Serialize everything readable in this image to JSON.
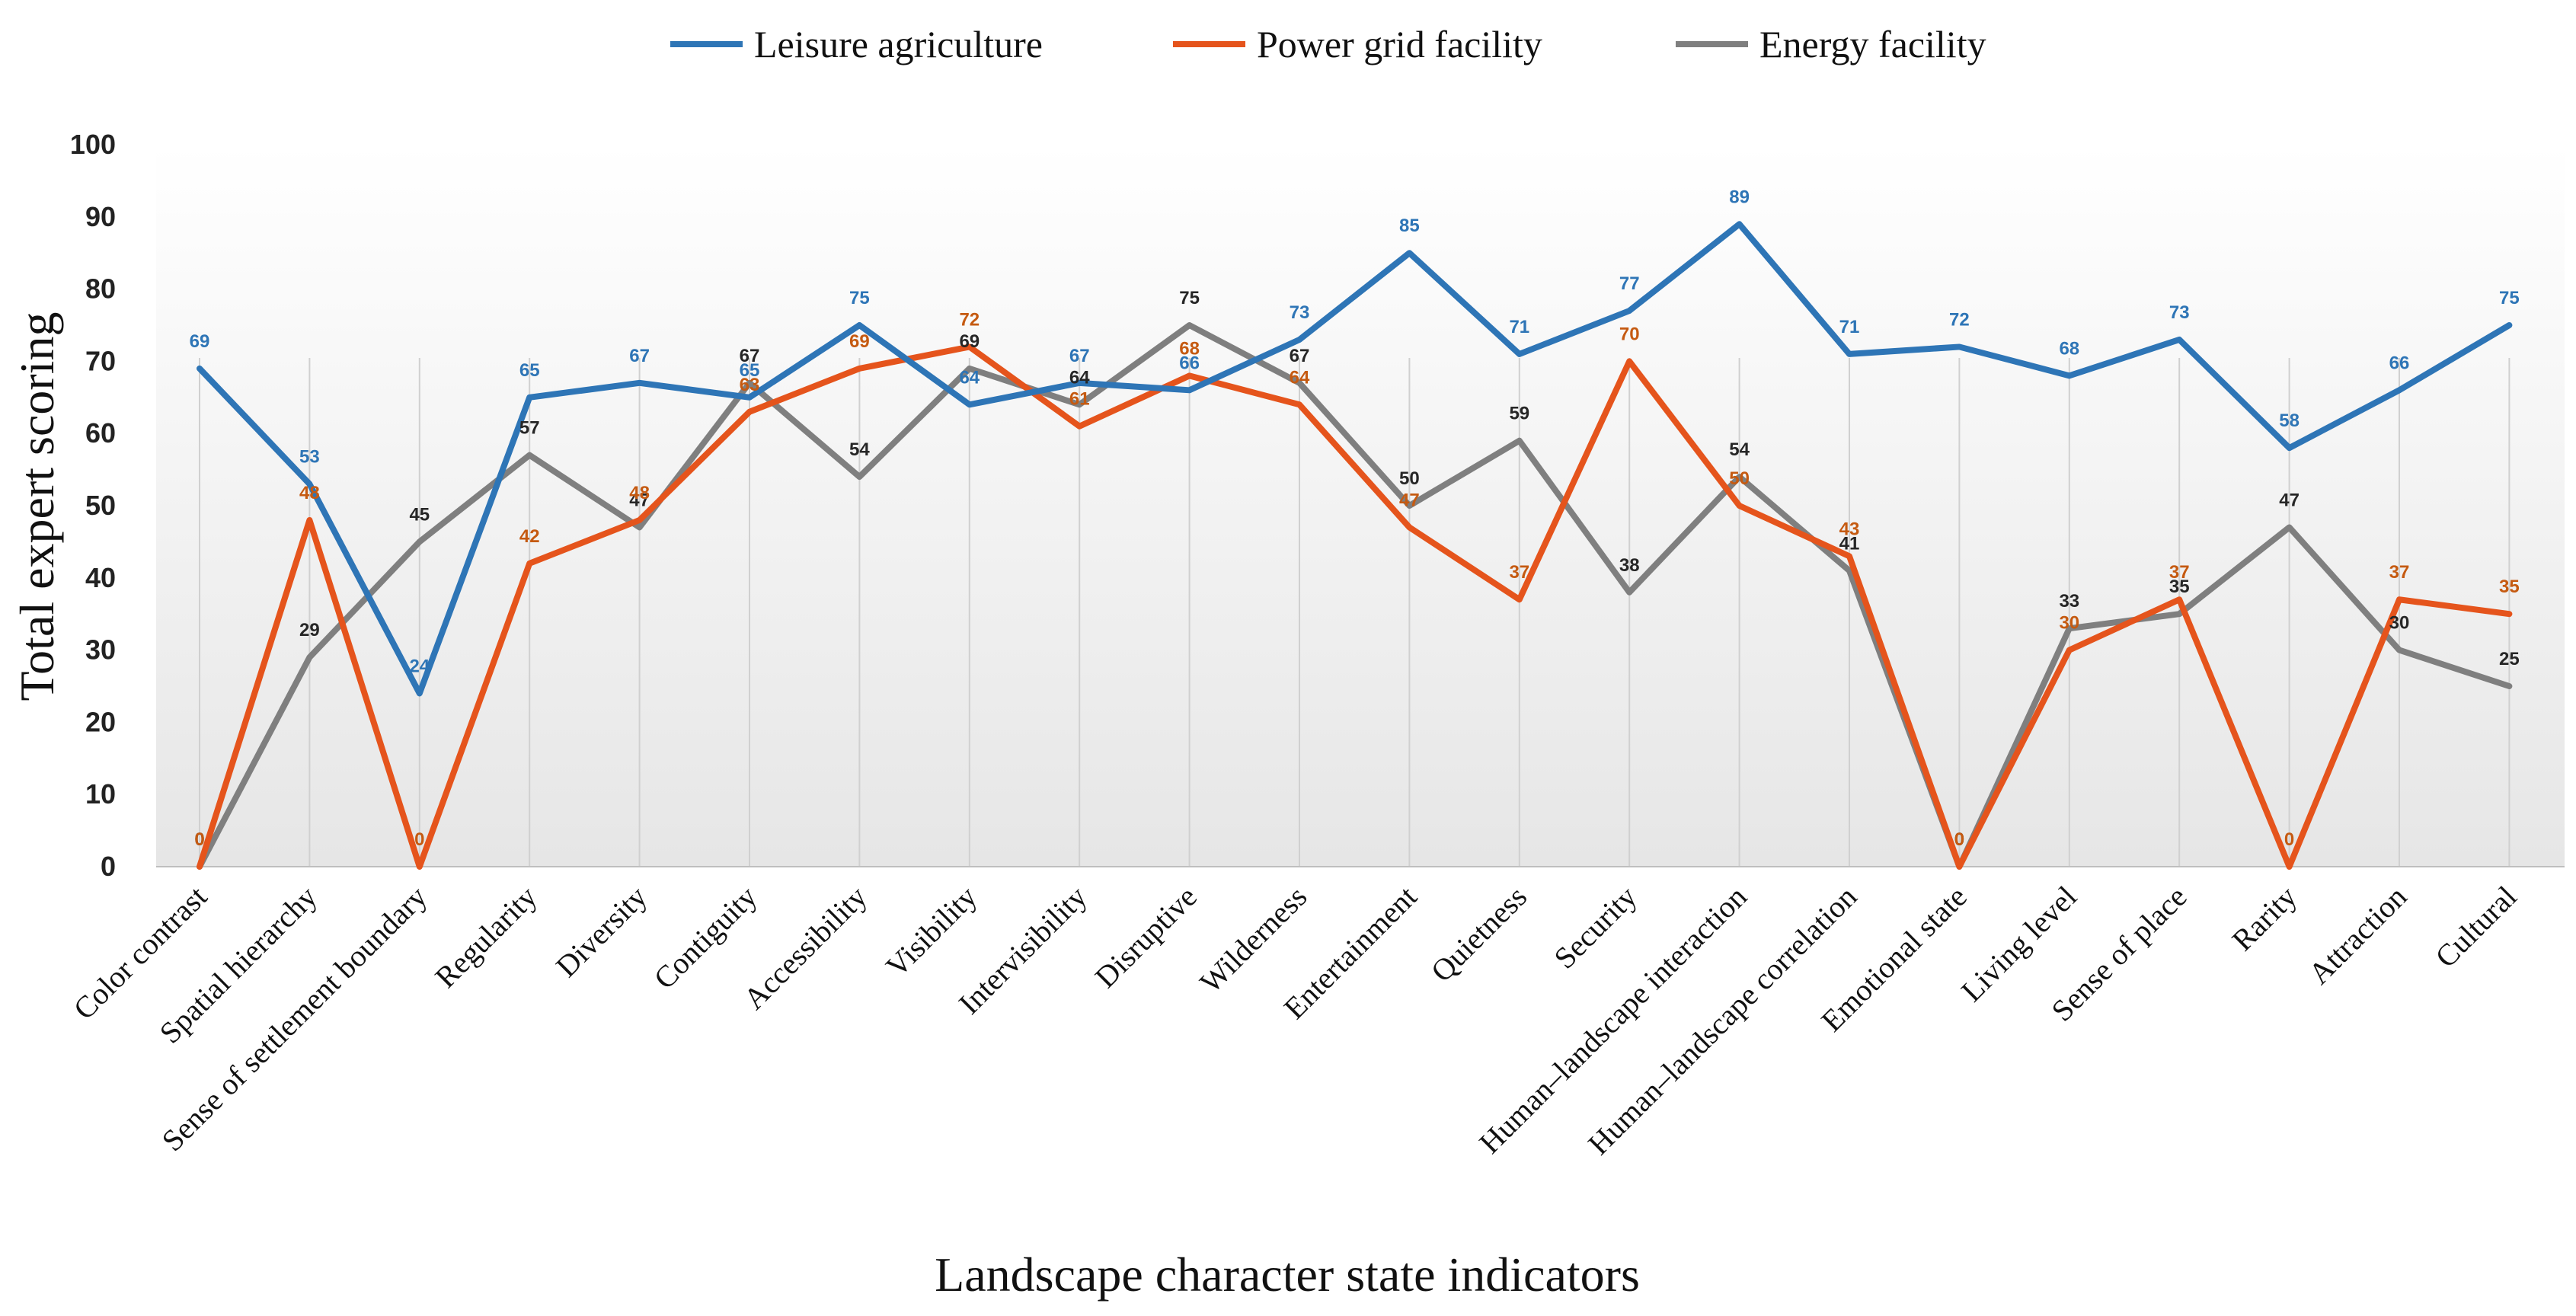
{
  "chart_data": {
    "type": "line",
    "title": "",
    "xlabel": "Landscape character state indicators",
    "ylabel": "Total expert scoring",
    "ylim": [
      0,
      100
    ],
    "yticks": [
      0,
      10,
      20,
      30,
      40,
      50,
      60,
      70,
      80,
      90,
      100
    ],
    "grid": "vertical lines at categories",
    "legend_position": "top-center",
    "categories": [
      "Color contrast",
      "Spatial hierarchy",
      "Sense of settlement boundary",
      "Regularity",
      "Diversity",
      "Contiguity",
      "Accessibility",
      "Visibility",
      "Intervisibility",
      "Disruptive",
      "Wilderness",
      "Entertainment",
      "Quietness",
      "Security",
      "Human–landscape interaction",
      "Human–landscape correlation",
      "Emotional state",
      "Living level",
      "Sense of place",
      "Rarity",
      "Attraction",
      "Cultural"
    ],
    "series": [
      {
        "name": "Leisure agriculture",
        "color": "#2E75B6",
        "values": [
          69,
          53,
          24,
          65,
          67,
          65,
          75,
          64,
          67,
          66,
          73,
          85,
          71,
          77,
          89,
          71,
          72,
          68,
          73,
          58,
          66,
          75
        ]
      },
      {
        "name": "Power grid facility",
        "color": "#E5541C",
        "values": [
          0,
          48,
          0,
          42,
          48,
          63,
          69,
          72,
          61,
          68,
          64,
          47,
          37,
          70,
          50,
          43,
          0,
          30,
          37,
          0,
          37,
          35
        ]
      },
      {
        "name": "Energy facility",
        "color": "#7F7F7F",
        "values": [
          0,
          29,
          45,
          57,
          47,
          67,
          54,
          69,
          64,
          75,
          67,
          50,
          59,
          38,
          54,
          41,
          0,
          33,
          35,
          47,
          30,
          25
        ]
      }
    ]
  }
}
